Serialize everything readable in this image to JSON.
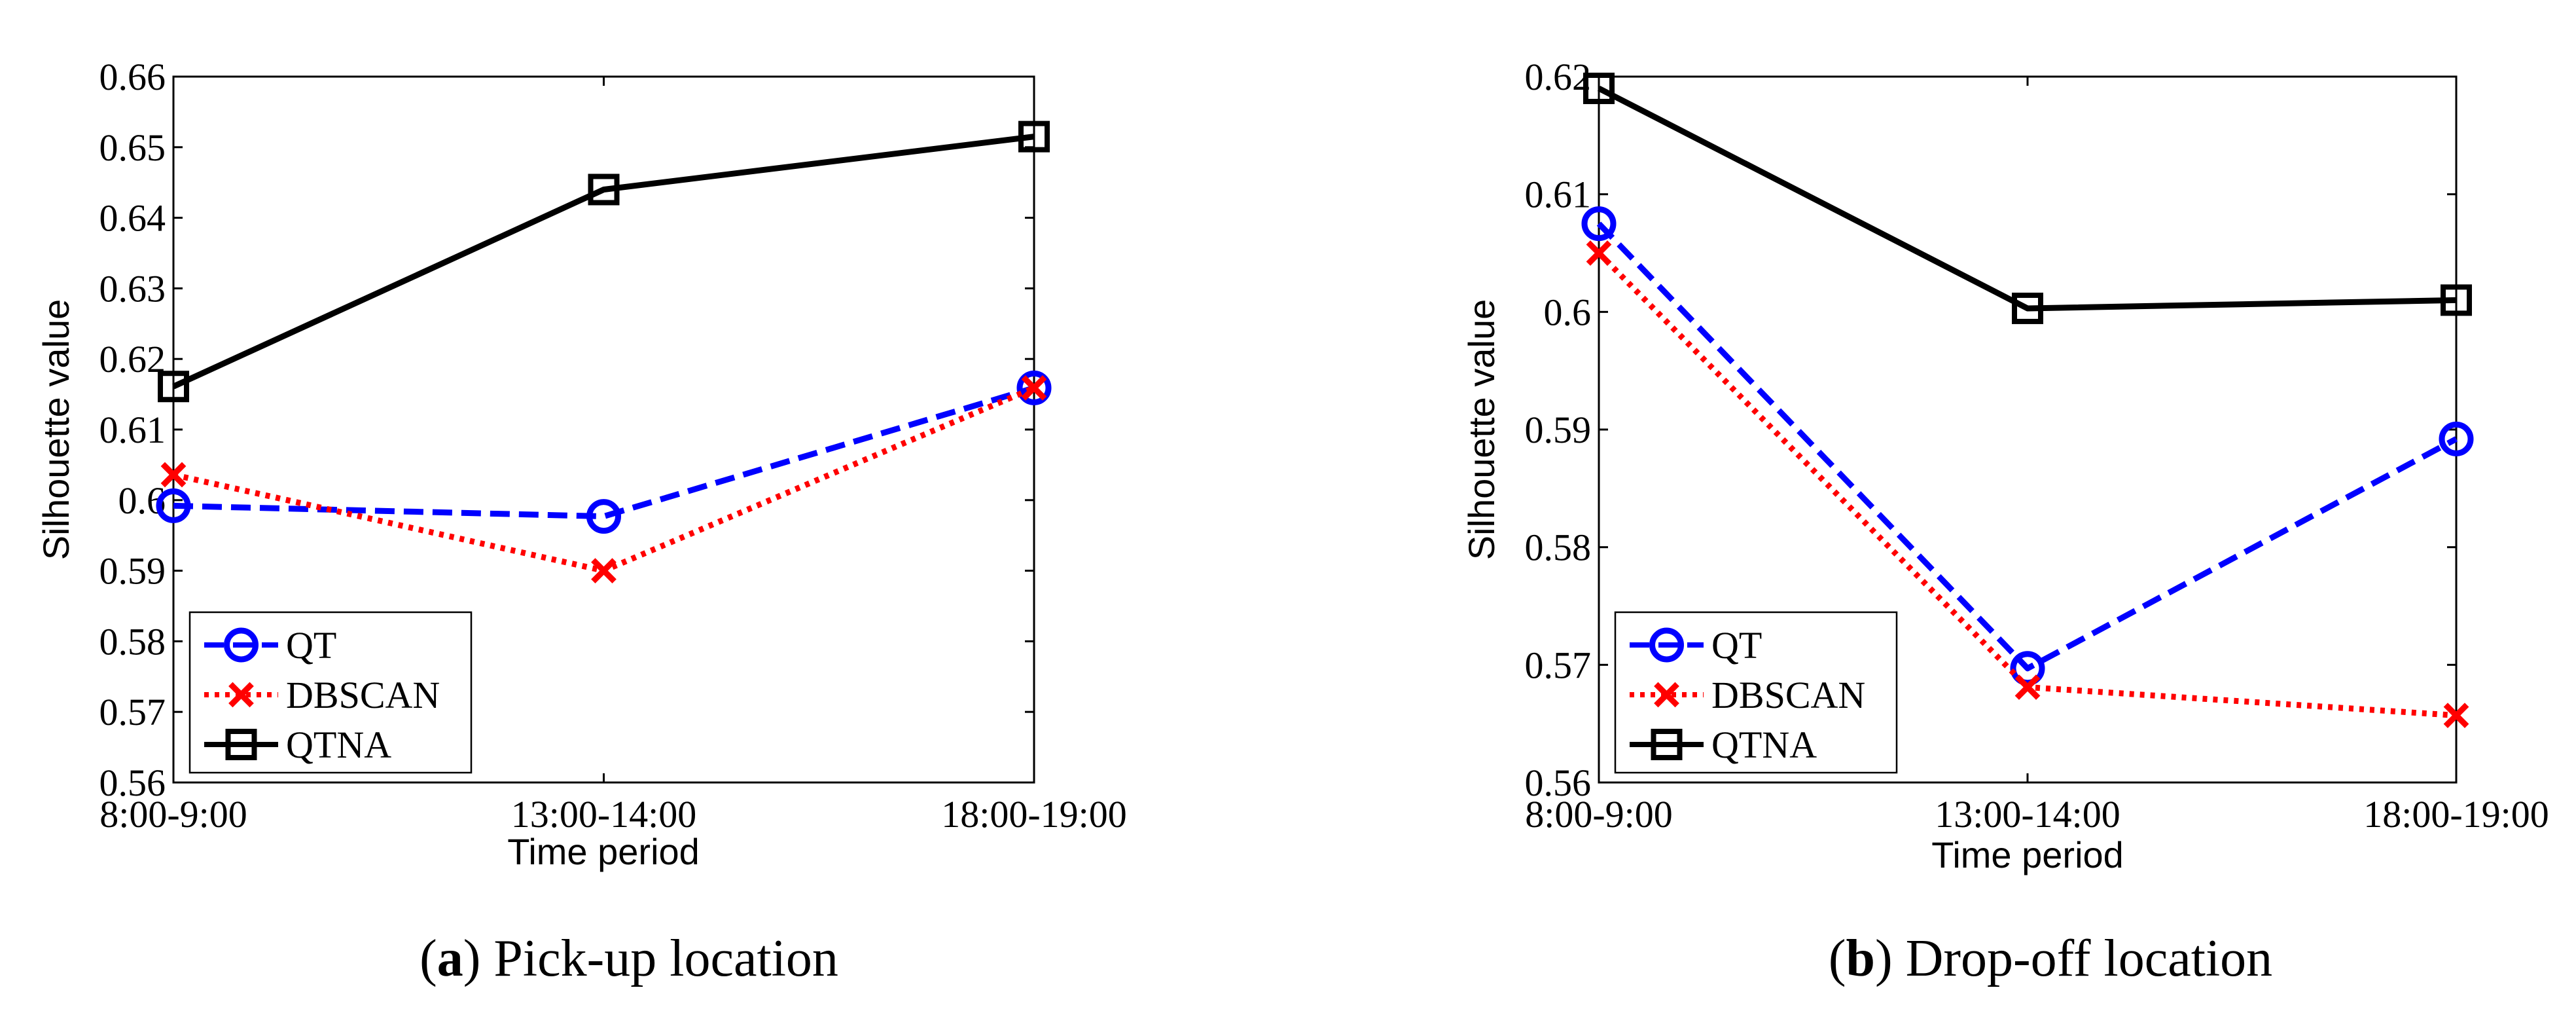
{
  "chart_data": [
    {
      "type": "line",
      "title": "",
      "caption": {
        "letter": "a",
        "text": "Pick-up location"
      },
      "xlabel": "Time period",
      "ylabel": "Silhouette value",
      "categories": [
        "8:00-9:00",
        "13:00-14:00",
        "18:00-19:00"
      ],
      "ylim": [
        0.56,
        0.66
      ],
      "yticks": [
        "0.56",
        "0.57",
        "0.58",
        "0.59",
        "0.6",
        "0.61",
        "0.62",
        "0.63",
        "0.64",
        "0.65",
        "0.66"
      ],
      "grid": false,
      "legend_position": "bottom-left",
      "series": [
        {
          "name": "QT",
          "values": [
            0.5992,
            0.5977,
            0.6159
          ],
          "color": "#0000ff",
          "line": "dashed",
          "marker": "circle"
        },
        {
          "name": "DBSCAN",
          "values": [
            0.6036,
            0.59,
            0.6159
          ],
          "color": "#ff0000",
          "line": "dotted",
          "marker": "x"
        },
        {
          "name": "QTNA",
          "values": [
            0.6161,
            0.644,
            0.6515
          ],
          "color": "#000000",
          "line": "solid",
          "marker": "square"
        }
      ]
    },
    {
      "type": "line",
      "title": "",
      "caption": {
        "letter": "b",
        "text": "Drop-off location"
      },
      "xlabel": "Time period",
      "ylabel": "Silhouette value",
      "categories": [
        "8:00-9:00",
        "13:00-14:00",
        "18:00-19:00"
      ],
      "ylim": [
        0.56,
        0.62
      ],
      "yticks": [
        "0.56",
        "0.57",
        "0.58",
        "0.59",
        "0.6",
        "0.61",
        "0.62"
      ],
      "grid": false,
      "legend_position": "bottom-left",
      "series": [
        {
          "name": "QT",
          "values": [
            0.6075,
            0.5697,
            0.5892
          ],
          "color": "#0000ff",
          "line": "dashed",
          "marker": "circle"
        },
        {
          "name": "DBSCAN",
          "values": [
            0.605,
            0.5681,
            0.5657
          ],
          "color": "#ff0000",
          "line": "dotted",
          "marker": "x"
        },
        {
          "name": "QTNA",
          "values": [
            0.619,
            0.6003,
            0.601
          ],
          "color": "#000000",
          "line": "solid",
          "marker": "square"
        }
      ]
    }
  ]
}
